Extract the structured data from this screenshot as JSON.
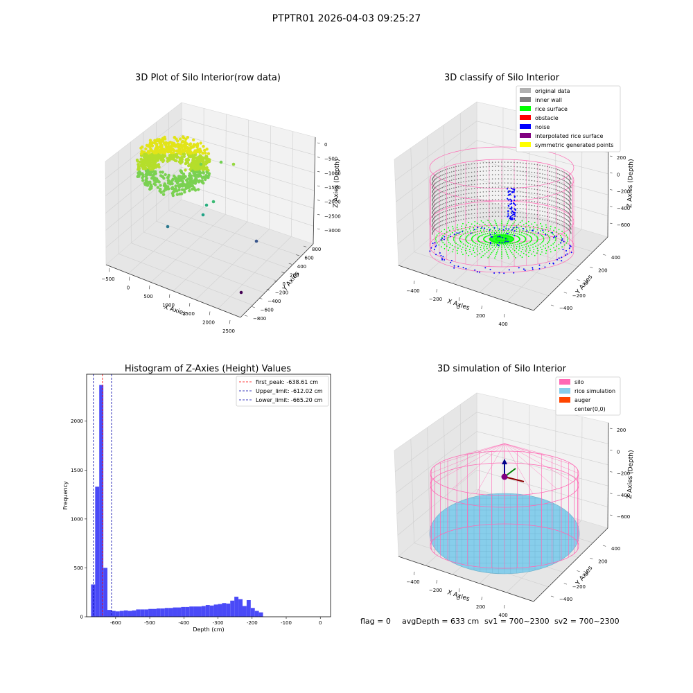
{
  "figure": {
    "suptitle": "PTPTR01 2026-04-03 09:25:27",
    "footer": {
      "flag": "flag = 0",
      "avg_depth": "avgDepth = 633 cm",
      "sv1": "sv1 = 700~2300",
      "sv2": "sv2 = 700~2300"
    }
  },
  "colors": {
    "pane": "#f2f2f2",
    "pane_dark": "#e6e6e6",
    "grid": "#cfcfcf",
    "hist_bar": "#4a4af7",
    "first_peak": "#ff0000",
    "limits": "#0000aa",
    "silo": "#ff69b4",
    "rice_sim": "#87ceeb",
    "auger": "#ff4500",
    "original": "#b0b0b0",
    "inner_wall": "#808080",
    "rice_surface": "#00ff00",
    "obstacle": "#ff0000",
    "noise": "#0000ff",
    "interpolated": "#800080",
    "symmetric": "#ffff00"
  },
  "chart_data": [
    {
      "type": "scatter",
      "title": "3D Plot of Silo Interior(row data)",
      "xlabel": "X Axies",
      "ylabel": "Y Axies",
      "zlabel": "Z Axies (Depth)",
      "x_ticks": [
        "−500",
        "0",
        "500",
        "1000",
        "1500",
        "2000",
        "2500"
      ],
      "y_ticks": [
        "−800",
        "−600",
        "−400",
        "−200",
        "0",
        "200",
        "400",
        "600",
        "800"
      ],
      "z_ticks": [
        "0",
        "−500",
        "−1000",
        "−1500",
        "−2000",
        "−2500",
        "−3000"
      ],
      "colormap": "viridis"
    },
    {
      "type": "scatter",
      "title": "3D classify of Silo Interior",
      "xlabel": "X Axies",
      "ylabel": "Y Axies",
      "zlabel": "Z Axies (Depth)",
      "x_ticks": [
        "−400",
        "−200",
        "0",
        "200",
        "400"
      ],
      "y_ticks": [
        "−400",
        "−200",
        "0",
        "200",
        "400"
      ],
      "z_ticks": [
        "200",
        "0",
        "−200",
        "−400",
        "−600"
      ],
      "legend": [
        {
          "label": "original data",
          "color": "#b0b0b0"
        },
        {
          "label": "inner wall",
          "color": "#808080"
        },
        {
          "label": "rice surface",
          "color": "#00ff00"
        },
        {
          "label": "obstacle",
          "color": "#ff0000"
        },
        {
          "label": "noise",
          "color": "#0000ff"
        },
        {
          "label": "interpolated rice surface",
          "color": "#800080"
        },
        {
          "label": "symmetric generated points",
          "color": "#ffff00"
        }
      ],
      "legend_placement": "top-right"
    },
    {
      "type": "bar",
      "title": "Histogram of Z-Axies (Height) Values",
      "xlabel": "Depth (cm)",
      "ylabel": "Frequency",
      "xlim": [
        -685,
        30
      ],
      "ylim": [
        0,
        2480
      ],
      "x_ticks": [
        -600,
        -500,
        -400,
        -300,
        -200,
        -100,
        0
      ],
      "y_ticks": [
        0,
        500,
        1000,
        1500,
        2000,
        2500
      ],
      "bin_width": 12,
      "bin_start": -672,
      "values": [
        330,
        1330,
        2370,
        500,
        70,
        60,
        55,
        60,
        65,
        60,
        65,
        75,
        75,
        75,
        80,
        80,
        85,
        85,
        90,
        90,
        95,
        95,
        100,
        100,
        105,
        105,
        105,
        110,
        120,
        115,
        125,
        130,
        140,
        135,
        165,
        205,
        180,
        110,
        170,
        90,
        60,
        45
      ],
      "lines": [
        {
          "label": "first_peak: -638.61 cm",
          "x": -638.61,
          "color": "#ff0000"
        },
        {
          "label": "Upper_limit: -612.02 cm",
          "x": -612.02,
          "color": "#0000aa"
        },
        {
          "label": "Lower_limit: -665.20 cm",
          "x": -665.2,
          "color": "#0000aa"
        }
      ],
      "legend_placement": "top-right"
    },
    {
      "type": "scatter",
      "title": "3D simulation of Silo Interior",
      "xlabel": "X Axies",
      "ylabel": "Y Axies",
      "zlabel": "Z Axies (Depth)",
      "x_ticks": [
        "−400",
        "−200",
        "0",
        "200",
        "400"
      ],
      "y_ticks": [
        "−400",
        "−200",
        "0",
        "200",
        "400"
      ],
      "z_ticks": [
        "200",
        "0",
        "−200",
        "−400",
        "−600"
      ],
      "legend": [
        {
          "label": "silo",
          "color": "#ff69b4"
        },
        {
          "label": "rice simulation",
          "color": "#87ceeb"
        },
        {
          "label": "auger",
          "color": "#ff4500"
        },
        {
          "label": "center(0,0)",
          "color": ""
        }
      ],
      "legend_placement": "top-right"
    }
  ]
}
